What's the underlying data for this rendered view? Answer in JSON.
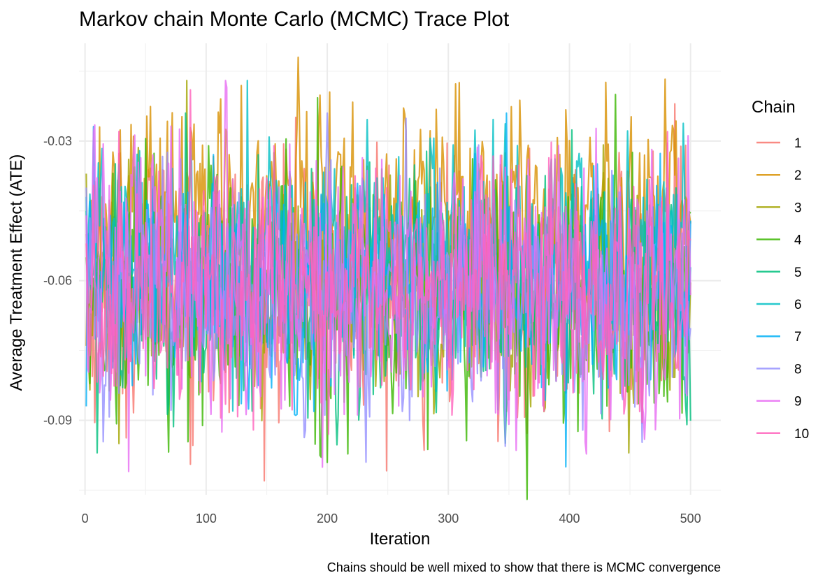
{
  "chart_data": {
    "type": "line",
    "title": "Markov chain Monte Carlo (MCMC) Trace Plot",
    "xlabel": "Iteration",
    "ylabel": "Average Treatment Effect (ATE)",
    "caption": "Chains should be well mixed to show that there is MCMC convergence",
    "xlim": [
      -5,
      525
    ],
    "ylim": [
      -0.106,
      -0.009
    ],
    "x_ticks": [
      0,
      100,
      200,
      300,
      400,
      500
    ],
    "x_tick_labels": [
      "0",
      "100",
      "200",
      "300",
      "400",
      "500"
    ],
    "y_ticks": [
      -0.09,
      -0.06,
      -0.03
    ],
    "y_tick_labels": [
      "-0.09",
      "-0.06",
      "-0.03"
    ],
    "grid": true,
    "legend": {
      "title": "Chain",
      "placement": "right"
    },
    "iterations": {
      "start": 1,
      "end": 500
    },
    "series": [
      {
        "name": "1",
        "color": "#F8766D",
        "start_value": -0.05,
        "min": -0.103,
        "max": -0.022,
        "mean": -0.055
      },
      {
        "name": "2",
        "color": "#D89000",
        "start_value": -0.074,
        "min": -0.075,
        "max": -0.012,
        "mean": -0.052
      },
      {
        "name": "3",
        "color": "#A3A500",
        "start_value": -0.037,
        "min": -0.097,
        "max": -0.017,
        "mean": -0.054
      },
      {
        "name": "4",
        "color": "#39B600",
        "start_value": -0.055,
        "min": -0.107,
        "max": -0.02,
        "mean": -0.055
      },
      {
        "name": "5",
        "color": "#00BF7D",
        "start_value": -0.045,
        "min": -0.097,
        "max": -0.024,
        "mean": -0.056
      },
      {
        "name": "6",
        "color": "#00BFC4",
        "start_value": -0.042,
        "min": -0.088,
        "max": -0.017,
        "mean": -0.055
      },
      {
        "name": "7",
        "color": "#00B0F6",
        "start_value": -0.087,
        "min": -0.1,
        "max": -0.024,
        "mean": -0.056
      },
      {
        "name": "8",
        "color": "#9590FF",
        "start_value": -0.04,
        "min": -0.099,
        "max": -0.024,
        "mean": -0.054
      },
      {
        "name": "9",
        "color": "#E76BF3",
        "start_value": -0.046,
        "min": -0.101,
        "max": -0.017,
        "mean": -0.054
      },
      {
        "name": "10",
        "color": "#FF62BC",
        "start_value": -0.052,
        "min": -0.093,
        "max": -0.019,
        "mean": -0.055
      }
    ]
  }
}
